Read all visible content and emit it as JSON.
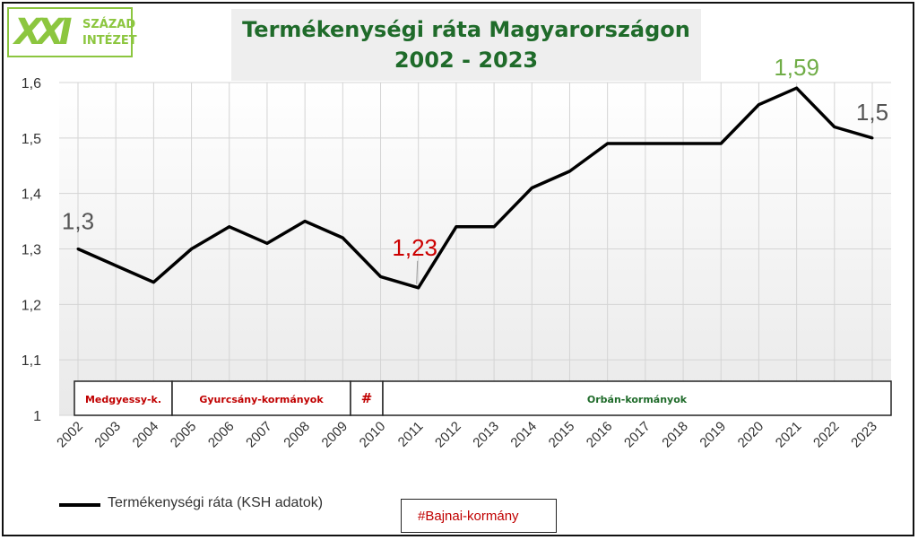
{
  "title": {
    "line1": "Termékenységi ráta Magyarországon",
    "line2": "2002 - 2023"
  },
  "logo": {
    "mark": "XXI",
    "line1": "SZÁZAD",
    "line2": "INTÉZET"
  },
  "colors": {
    "title": "#1f6b2a",
    "logo": "#8cc63f",
    "government_label": "#c00000",
    "line": "#000000"
  },
  "chart_data": {
    "type": "line",
    "x": [
      "2002",
      "2003",
      "2004",
      "2005",
      "2006",
      "2007",
      "2008",
      "2009",
      "2010",
      "2011",
      "2012",
      "2013",
      "2014",
      "2015",
      "2016",
      "2017",
      "2018",
      "2019",
      "2020",
      "2021",
      "2022",
      "2023"
    ],
    "series": [
      {
        "name": "Termékenységi ráta (KSH adatok)",
        "values": [
          1.3,
          1.27,
          1.24,
          1.3,
          1.34,
          1.31,
          1.35,
          1.32,
          1.25,
          1.23,
          1.34,
          1.34,
          1.41,
          1.44,
          1.49,
          1.49,
          1.49,
          1.49,
          1.56,
          1.59,
          1.52,
          1.5
        ]
      }
    ],
    "ylim": [
      1,
      1.6
    ],
    "yticks": [
      "1",
      "1,1",
      "1,2",
      "1,3",
      "1,4",
      "1,5",
      "1,6"
    ],
    "grid": true,
    "legend": "bottom-left",
    "annotations": [
      {
        "year": "2002",
        "text": "1,3",
        "color": "#555555"
      },
      {
        "year": "2011",
        "text": "1,23",
        "color": "#cc0000"
      },
      {
        "year": "2021",
        "text": "1,59",
        "color": "#70ad47"
      },
      {
        "year": "2023",
        "text": "1,5",
        "color": "#555555"
      }
    ],
    "governments": [
      {
        "label": "Medgyessy-k.",
        "from": "2002",
        "to": "2004"
      },
      {
        "label": "Gyurcsány-kormányok",
        "from": "2005",
        "to": "2009"
      },
      {
        "label": "#",
        "from": "2009",
        "to": "2010"
      },
      {
        "label": "Orbán-kormányok",
        "from": "2010",
        "to": "2023"
      }
    ]
  },
  "legend": {
    "label": "Termékenységi ráta (KSH adatok)"
  },
  "footnote": {
    "label": "#Bajnai-kormány"
  }
}
